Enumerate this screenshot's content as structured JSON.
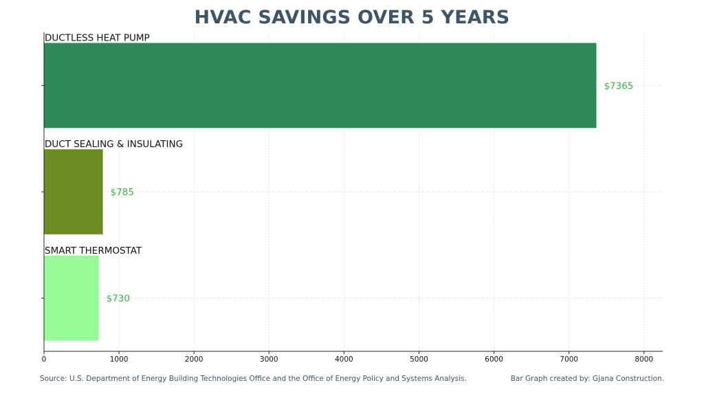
{
  "chart_data": {
    "type": "bar",
    "orientation": "horizontal",
    "title": "HVAC SAVINGS OVER 5 YEARS",
    "categories": [
      "DUCTLESS HEAT PUMP",
      "DUCT SEALING & INSULATING",
      "SMART THERMOSTAT"
    ],
    "values": [
      7365,
      785,
      730
    ],
    "value_labels": [
      "$7365",
      "$785",
      "$730"
    ],
    "colors": [
      "#2e8b57",
      "#6b8e23",
      "#98fb98"
    ],
    "value_label_color": "#3fae49",
    "xlim": [
      0,
      8250
    ],
    "xticks": [
      0,
      1000,
      2000,
      3000,
      4000,
      5000,
      6000,
      7000,
      8000
    ],
    "xlabel": "",
    "ylabel": "",
    "grid": true
  },
  "footer": {
    "source": "Source: U.S. Department of Energy Building Technologies Office and the Office of Energy Policy and Systems Analysis.",
    "credit": "Bar Graph created by: Gjana Construction."
  }
}
